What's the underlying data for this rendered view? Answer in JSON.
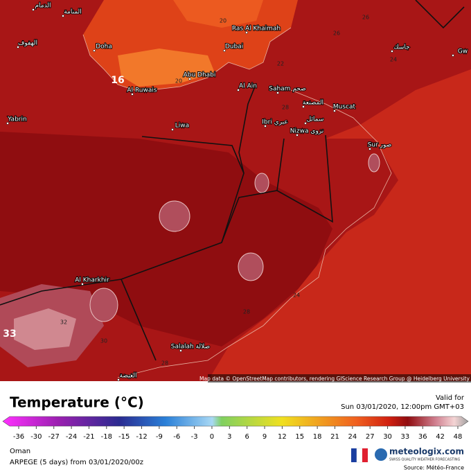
{
  "map": {
    "places": [
      "الدمام",
      "المنامة",
      "الهفوف",
      "Doha",
      "Yabrin",
      "Abu Dhabi",
      "Al Ruwais",
      "Dubai",
      "Ras Al Khaimah",
      "Al Ain",
      "Saham صحم",
      "Liwa",
      "Ibri عبري",
      "المصنعة",
      "Muscat",
      "سمائل",
      "Nizwa نزوى",
      "Sur صور",
      "Al Kharkhir",
      "Salalah صلالة",
      "الغيضة",
      "جاسك",
      "Gw"
    ],
    "contours": [
      16,
      20,
      20,
      22,
      26,
      26,
      24,
      28,
      24,
      28,
      32,
      30,
      28,
      33
    ],
    "attribution": "Map data © OpenStreetMap contributors, rendering GIScience Research Group @ Heidelberg University"
  },
  "legend": {
    "title": "Temperature (°C)",
    "valid_label": "Valid for",
    "valid_time": "Sun 03/01/2020, 12:00pm GMT+03",
    "ticks": [
      -36,
      -30,
      -27,
      -24,
      -21,
      -18,
      -15,
      -12,
      -9,
      -6,
      -3,
      0,
      3,
      6,
      9,
      12,
      15,
      18,
      21,
      24,
      27,
      30,
      33,
      36,
      42,
      48
    ]
  },
  "footer": {
    "region": "Oman",
    "model": "ARPEGE (5 days) from 03/01/2020/00z",
    "brand": "meteologix.com",
    "tagline": "SWISS QUALITY WEATHER FORECASTING",
    "source": "Source: Météo-France"
  }
}
